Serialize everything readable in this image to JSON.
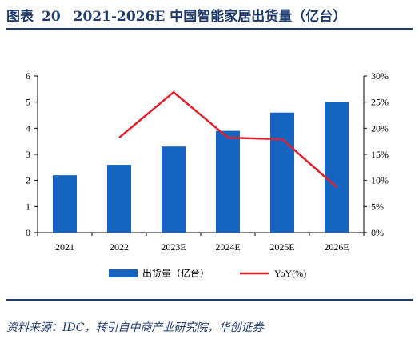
{
  "header": {
    "figure_label": "图表",
    "figure_number": "20",
    "title": "2021-2026E 中国智能家居出货量（亿台）"
  },
  "chart_data": {
    "type": "bar",
    "categories": [
      "2021",
      "2022",
      "2023E",
      "2024E",
      "2025E",
      "2026E"
    ],
    "series": [
      {
        "name": "出货量（亿台）",
        "type": "bar",
        "axis": "left",
        "values": [
          2.2,
          2.6,
          3.3,
          3.9,
          4.6,
          5.0
        ],
        "color": "#1565c0"
      },
      {
        "name": "YoY(%)",
        "type": "line",
        "axis": "right",
        "values": [
          null,
          18.2,
          26.9,
          18.2,
          17.9,
          8.7
        ],
        "color": "#e0202a"
      }
    ],
    "yleft": {
      "ylim": [
        0,
        6
      ],
      "ticks": [
        "0",
        "1",
        "2",
        "3",
        "4",
        "5",
        "6"
      ]
    },
    "yright": {
      "ylim": [
        0,
        30
      ],
      "ticks": [
        "0%",
        "5%",
        "10%",
        "15%",
        "20%",
        "25%",
        "30%"
      ]
    },
    "grid": false,
    "legend_position": "bottom"
  },
  "footer": {
    "source": "资料来源：IDC，转引自中商产业研究院，华创证券"
  }
}
